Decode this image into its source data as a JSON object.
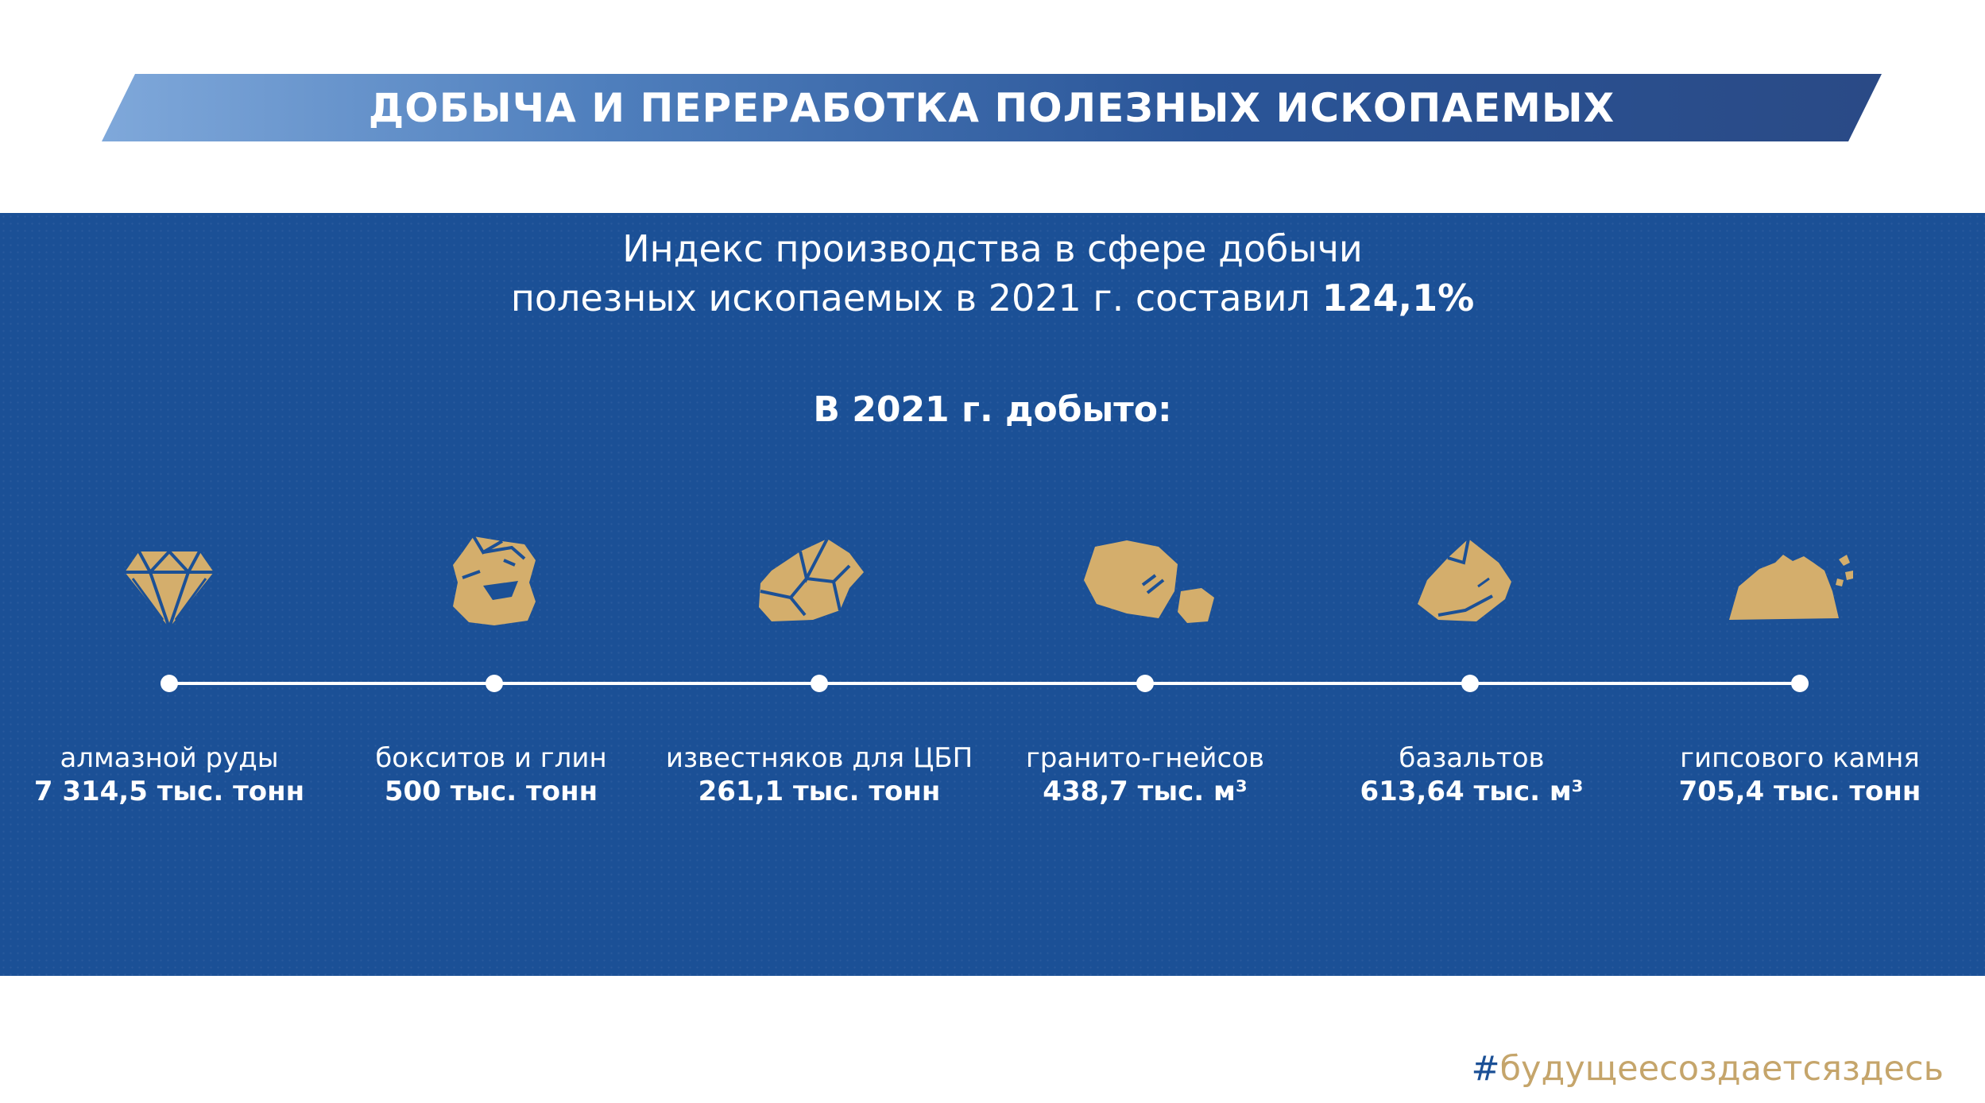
{
  "title": "ДОБЫЧА И ПЕРЕРАБОТКА ПОЛЕЗНЫХ ИСКОПАЕМЫХ",
  "index": {
    "line1": "Индекс производства в сфере добычи",
    "line2": "полезных ископаемых в 2021 г. составил",
    "value": "124,1%"
  },
  "mined_heading": "В 2021 г. добыто:",
  "items": [
    {
      "name": "алмазной руды",
      "amount": "7 314,5 тыс. тонн",
      "icon": "diamond-icon"
    },
    {
      "name": "бокситов и глин",
      "amount": "500 тыс. тонн",
      "icon": "bauxite-rock-icon"
    },
    {
      "name": "известняков для ЦБП",
      "amount": "261,1 тыс. тонн",
      "icon": "limestone-rock-icon"
    },
    {
      "name": "гранито-гнейсов",
      "amount": "438,7 тыс. м³",
      "icon": "granite-rocks-icon"
    },
    {
      "name": "базальтов",
      "amount": "613,64 тыс. м³",
      "icon": "basalt-rock-icon"
    },
    {
      "name": "гипсового камня",
      "amount": "705,4 тыс. тонн",
      "icon": "gypsum-pile-icon"
    }
  ],
  "hashtag": {
    "symbol": "#",
    "text": "будущеесоздаетсяздесь"
  },
  "colors": {
    "band": "#1b5096",
    "gold": "#d4ae6c",
    "hashtag": "#c5a56b",
    "title_gradient_start": "#7fa8da",
    "title_gradient_end": "#2a4a86"
  }
}
